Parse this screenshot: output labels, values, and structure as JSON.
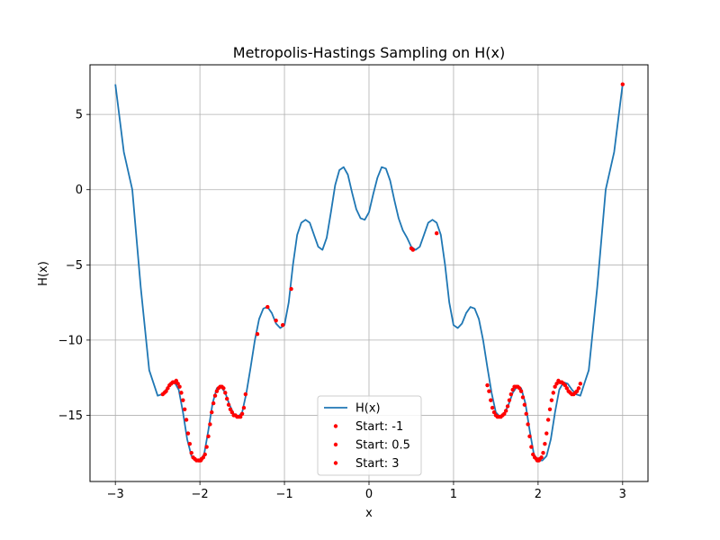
{
  "chart_data": {
    "type": "line",
    "title": "Metropolis-Hastings Sampling on H(x)",
    "xlabel": "x",
    "ylabel": "H(x)",
    "xlim": [
      -3.3,
      3.3
    ],
    "ylim": [
      -19.4,
      8.3
    ],
    "x_ticks": [
      -3,
      -2,
      -1,
      0,
      1,
      2,
      3
    ],
    "x_tick_labels": [
      "−3",
      "−2",
      "−1",
      "0",
      "1",
      "2",
      "3"
    ],
    "y_ticks": [
      5,
      0,
      -5,
      -10,
      -15
    ],
    "y_tick_labels": [
      "5",
      "0",
      "−5",
      "−10",
      "−15"
    ],
    "grid": true,
    "legend_position": "lower-center",
    "colors": {
      "line": "#1f77b4",
      "samples": "#ff0000"
    },
    "series": [
      {
        "name": "H(x)",
        "kind": "line",
        "x": [
          -3.0,
          -2.9,
          -2.8,
          -2.7,
          -2.6,
          -2.5,
          -2.45,
          -2.4,
          -2.35,
          -2.3,
          -2.25,
          -2.2,
          -2.15,
          -2.1,
          -2.05,
          -2.0,
          -1.95,
          -1.9,
          -1.85,
          -1.8,
          -1.75,
          -1.7,
          -1.65,
          -1.6,
          -1.55,
          -1.5,
          -1.45,
          -1.4,
          -1.35,
          -1.3,
          -1.25,
          -1.2,
          -1.15,
          -1.1,
          -1.05,
          -1.0,
          -0.95,
          -0.9,
          -0.85,
          -0.8,
          -0.75,
          -0.7,
          -0.65,
          -0.6,
          -0.55,
          -0.5,
          -0.45,
          -0.4,
          -0.35,
          -0.3,
          -0.25,
          -0.2,
          -0.15,
          -0.1,
          -0.05,
          0.0,
          0.05,
          0.1,
          0.15,
          0.2,
          0.25,
          0.3,
          0.35,
          0.4,
          0.45,
          0.5,
          0.55,
          0.6,
          0.65,
          0.7,
          0.75,
          0.8,
          0.85,
          0.9,
          0.95,
          1.0,
          1.05,
          1.1,
          1.15,
          1.2,
          1.25,
          1.3,
          1.35,
          1.4,
          1.45,
          1.5,
          1.55,
          1.6,
          1.65,
          1.7,
          1.75,
          1.8,
          1.85,
          1.9,
          1.95,
          2.0,
          2.05,
          2.1,
          2.15,
          2.2,
          2.25,
          2.3,
          2.35,
          2.4,
          2.45,
          2.5,
          2.6,
          2.7,
          2.8,
          2.9,
          3.0
        ],
        "y": [
          7.0,
          2.5,
          0.0,
          -6.5,
          -12.0,
          -13.7,
          -13.6,
          -13.3,
          -12.9,
          -12.8,
          -13.3,
          -14.8,
          -16.6,
          -17.7,
          -18.0,
          -18.0,
          -17.6,
          -16.0,
          -14.2,
          -13.2,
          -13.1,
          -13.5,
          -14.3,
          -14.9,
          -15.1,
          -14.8,
          -13.5,
          -11.8,
          -10.0,
          -8.6,
          -7.9,
          -7.8,
          -8.2,
          -8.9,
          -9.2,
          -9.0,
          -7.5,
          -5.0,
          -3.0,
          -2.2,
          -2.0,
          -2.2,
          -3.0,
          -3.8,
          -4.0,
          -3.2,
          -1.5,
          0.3,
          1.3,
          1.5,
          1.0,
          -0.2,
          -1.3,
          -1.9,
          -2.0,
          -1.5,
          -0.3,
          0.8,
          1.5,
          1.4,
          0.6,
          -0.7,
          -1.9,
          -2.7,
          -3.2,
          -3.8,
          -4.0,
          -3.8,
          -3.0,
          -2.2,
          -2.0,
          -2.2,
          -3.0,
          -5.0,
          -7.5,
          -9.0,
          -9.2,
          -8.9,
          -8.2,
          -7.8,
          -7.9,
          -8.6,
          -10.0,
          -11.8,
          -13.5,
          -14.8,
          -15.1,
          -14.9,
          -14.3,
          -13.5,
          -13.1,
          -13.2,
          -14.2,
          -16.0,
          -17.6,
          -18.0,
          -18.0,
          -17.7,
          -16.6,
          -14.8,
          -13.3,
          -12.8,
          -12.9,
          -13.3,
          -13.6,
          -13.7,
          -12.0,
          -6.5,
          0.0,
          2.5,
          7.0
        ]
      },
      {
        "name": "Start: -1",
        "kind": "scatter",
        "x": [
          -2.44,
          -2.42,
          -2.4,
          -2.38,
          -2.36,
          -2.34,
          -2.32,
          -2.3,
          -2.28,
          -2.26,
          -2.24,
          -2.22,
          -2.2,
          -2.18,
          -2.16,
          -2.14,
          -2.12,
          -2.1,
          -2.08,
          -2.06,
          -2.04,
          -2.02,
          -2.01,
          -2.0,
          -1.99,
          -1.98,
          -1.96,
          -1.94,
          -1.92,
          -1.9,
          -1.88,
          -1.86,
          -1.84,
          -1.82,
          -1.8,
          -1.78,
          -1.76,
          -1.74,
          -1.72,
          -1.7,
          -1.68,
          -1.66,
          -1.64,
          -1.62,
          -1.6,
          -1.58,
          -1.56,
          -1.54,
          -1.52,
          -1.5,
          -1.48,
          -1.46,
          -1.32,
          -1.2,
          -1.1,
          -1.02,
          -0.92
        ],
        "y": [
          -13.6,
          -13.5,
          -13.4,
          -13.2,
          -13.0,
          -12.9,
          -12.8,
          -12.8,
          -12.7,
          -12.9,
          -13.1,
          -13.5,
          -14.0,
          -14.6,
          -15.3,
          -16.2,
          -16.9,
          -17.5,
          -17.8,
          -17.9,
          -18.0,
          -18.0,
          -18.0,
          -18.0,
          -18.0,
          -17.9,
          -17.8,
          -17.6,
          -17.1,
          -16.4,
          -15.6,
          -14.8,
          -14.2,
          -13.7,
          -13.4,
          -13.2,
          -13.1,
          -13.1,
          -13.2,
          -13.5,
          -13.9,
          -14.3,
          -14.6,
          -14.8,
          -15.0,
          -15.0,
          -15.1,
          -15.1,
          -15.1,
          -14.9,
          -14.5,
          -13.6,
          -9.6,
          -7.8,
          -8.7,
          -9.0,
          -6.6
        ]
      },
      {
        "name": "Start: 0.5",
        "kind": "scatter",
        "x": [
          0.5,
          0.52,
          0.8,
          1.4,
          1.42,
          1.44,
          1.46,
          1.48,
          1.5,
          1.52,
          1.54,
          1.56,
          1.58,
          1.6,
          1.62,
          1.64,
          1.66,
          1.68,
          1.7,
          1.72,
          1.74,
          1.76,
          1.78,
          1.8,
          1.82,
          1.84,
          1.86,
          1.88,
          1.9,
          1.92,
          1.94,
          1.96,
          1.98,
          1.99,
          2.0,
          2.01,
          2.02,
          2.04,
          2.06,
          2.08,
          2.1,
          2.12,
          2.14,
          2.16,
          2.18,
          2.2,
          2.22,
          2.24,
          2.26,
          2.28,
          2.3,
          2.32,
          2.34,
          2.36,
          2.38,
          2.4,
          2.42,
          2.44,
          2.46,
          2.48,
          2.5
        ],
        "y": [
          -3.9,
          -4.0,
          -2.9,
          -13.0,
          -13.4,
          -14.0,
          -14.5,
          -14.8,
          -15.0,
          -15.1,
          -15.1,
          -15.1,
          -15.0,
          -14.9,
          -14.7,
          -14.4,
          -14.0,
          -13.6,
          -13.3,
          -13.1,
          -13.1,
          -13.1,
          -13.2,
          -13.4,
          -13.8,
          -14.3,
          -14.9,
          -15.6,
          -16.4,
          -17.1,
          -17.6,
          -17.8,
          -17.9,
          -18.0,
          -18.0,
          -18.0,
          -17.9,
          -17.8,
          -17.5,
          -16.9,
          -16.2,
          -15.3,
          -14.6,
          -14.0,
          -13.5,
          -13.1,
          -12.9,
          -12.7,
          -12.8,
          -12.8,
          -12.9,
          -13.0,
          -13.2,
          -13.4,
          -13.5,
          -13.6,
          -13.6,
          -13.5,
          -13.4,
          -13.2,
          -12.9
        ]
      },
      {
        "name": "Start: 3",
        "kind": "scatter",
        "x": [
          3.0
        ],
        "y": [
          7.0
        ]
      }
    ]
  }
}
